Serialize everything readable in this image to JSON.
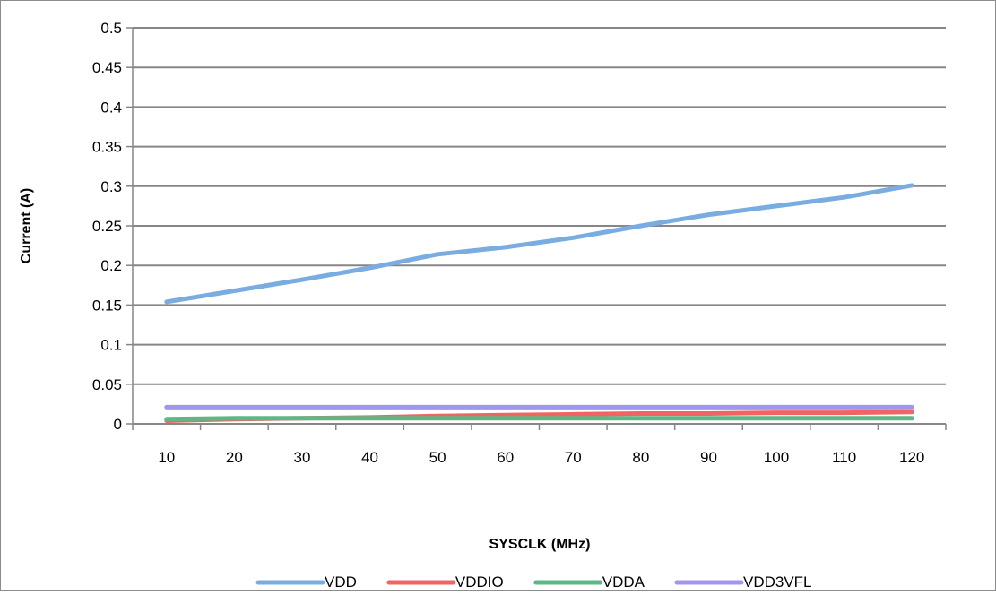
{
  "chart_data": {
    "type": "line",
    "title": "",
    "xlabel": "SYSCLK (MHz)",
    "ylabel": "Current (A)",
    "categories": [
      "10",
      "20",
      "30",
      "40",
      "50",
      "60",
      "70",
      "80",
      "90",
      "100",
      "110",
      "120"
    ],
    "x": [
      10,
      20,
      30,
      40,
      50,
      60,
      70,
      80,
      90,
      100,
      110,
      120
    ],
    "ylim": [
      0,
      0.5
    ],
    "yticks": [
      "0",
      "0.05",
      "0.1",
      "0.15",
      "0.2",
      "0.25",
      "0.3",
      "0.35",
      "0.4",
      "0.45",
      "0.5"
    ],
    "grid": true,
    "legend_position": "bottom",
    "series": [
      {
        "name": "VDD",
        "color": "#79ACE0",
        "values": [
          0.154,
          0.168,
          0.182,
          0.197,
          0.214,
          0.223,
          0.235,
          0.25,
          0.264,
          0.275,
          0.286,
          0.301
        ]
      },
      {
        "name": "VDDIO",
        "color": "#F26363",
        "values": [
          0.004,
          0.006,
          0.007,
          0.008,
          0.01,
          0.011,
          0.012,
          0.013,
          0.013,
          0.014,
          0.014,
          0.015
        ]
      },
      {
        "name": "VDDA",
        "color": "#5DB885",
        "values": [
          0.006,
          0.007,
          0.007,
          0.007,
          0.007,
          0.007,
          0.007,
          0.007,
          0.007,
          0.007,
          0.007,
          0.007
        ]
      },
      {
        "name": "VDD3VFL",
        "color": "#9F97EC",
        "values": [
          0.021,
          0.021,
          0.021,
          0.021,
          0.021,
          0.021,
          0.021,
          0.021,
          0.021,
          0.021,
          0.021,
          0.021
        ]
      }
    ]
  }
}
